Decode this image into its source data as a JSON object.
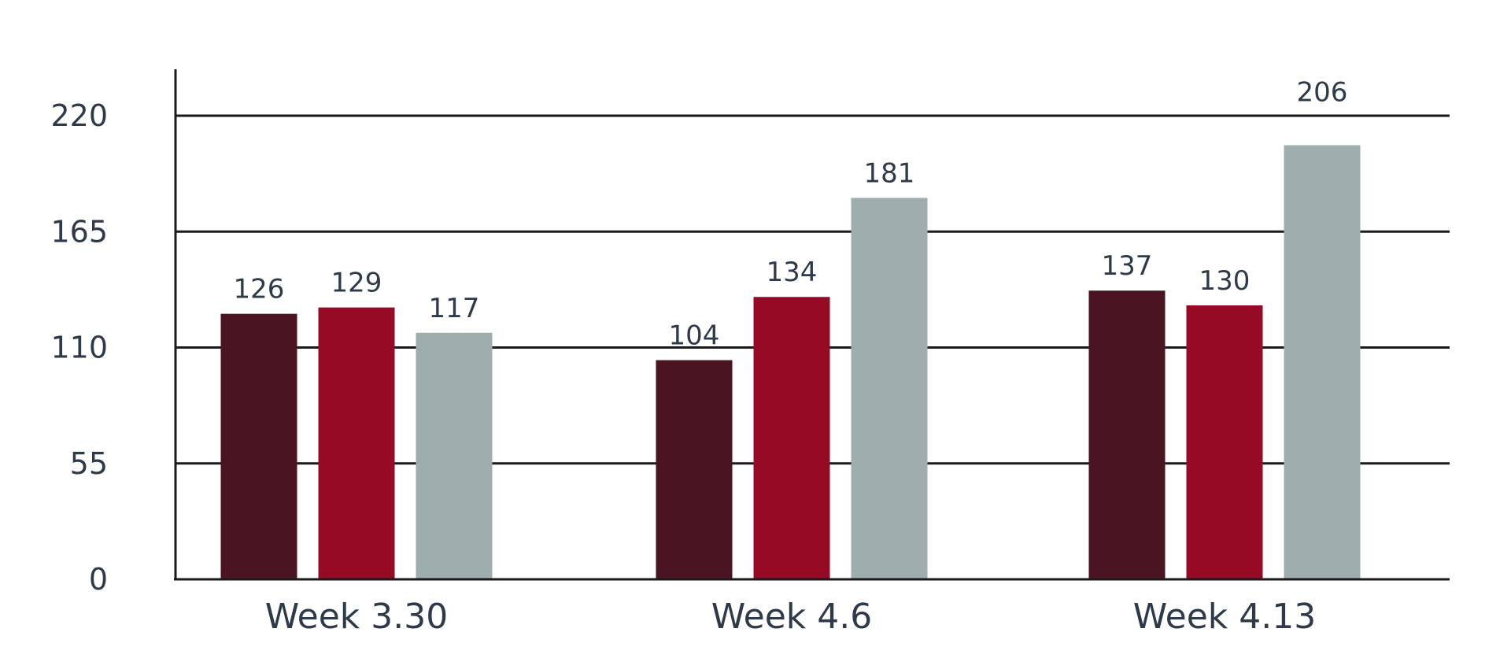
{
  "chart_data": {
    "type": "bar",
    "categories": [
      "Week 3.30",
      "Week 4.6",
      "Week 4.13"
    ],
    "series": [
      {
        "color": "#4a1421",
        "values": [
          126,
          104,
          137
        ]
      },
      {
        "color": "#960a25",
        "values": [
          129,
          134,
          130
        ]
      },
      {
        "color": "#9eadad",
        "values": [
          117,
          181,
          206
        ]
      }
    ],
    "yticks": [
      0,
      55,
      110,
      165,
      220
    ],
    "ylim": [
      0,
      242
    ],
    "grid": true,
    "title": "",
    "xlabel": "",
    "ylabel": ""
  },
  "colors": {
    "text": "#2e3a4a",
    "axis": "#1a1a1a",
    "background": "#ffffff"
  }
}
